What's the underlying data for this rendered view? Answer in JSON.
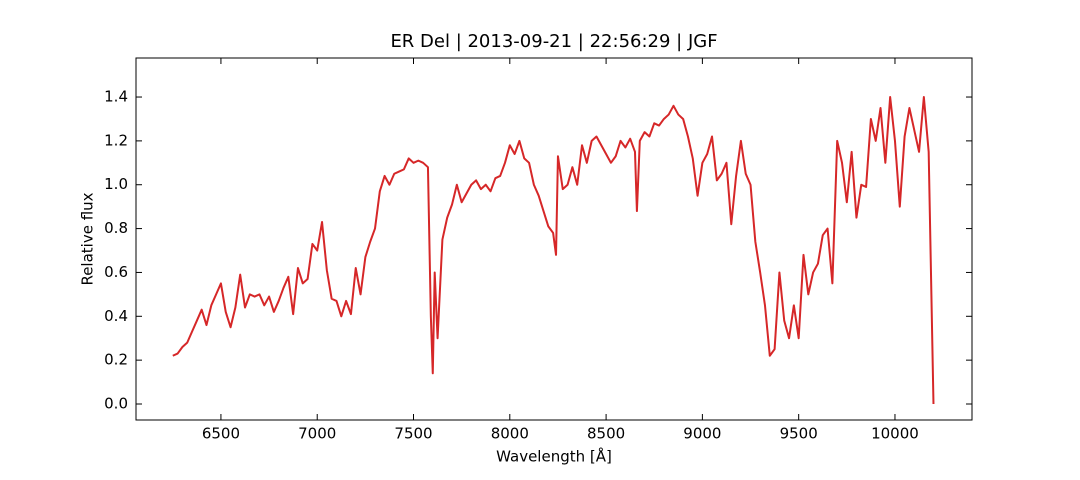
{
  "chart_data": {
    "type": "line",
    "title": "ER Del | 2013-09-21 | 22:56:29 | JGF",
    "xlabel": "Wavelength [Å]",
    "ylabel": "Relative flux",
    "color": "#d62728",
    "xlim": [
      6059,
      10400
    ],
    "ylim": [
      -0.073,
      1.578
    ],
    "xticks": [
      6500,
      7000,
      7500,
      8000,
      8500,
      9000,
      9500,
      10000
    ],
    "yticks": [
      {
        "value": 0,
        "label": "0.0"
      },
      0.2,
      0.4,
      0.6,
      0.8,
      {
        "value": 1,
        "label": "1.0"
      },
      1.2,
      1.4
    ],
    "x": [
      6250,
      6275,
      6300,
      6325,
      6350,
      6375,
      6400,
      6425,
      6450,
      6475,
      6500,
      6525,
      6550,
      6575,
      6600,
      6625,
      6650,
      6675,
      6700,
      6725,
      6750,
      6775,
      6800,
      6825,
      6850,
      6875,
      6900,
      6925,
      6950,
      6975,
      7000,
      7025,
      7050,
      7075,
      7100,
      7125,
      7150,
      7175,
      7200,
      7225,
      7250,
      7275,
      7300,
      7325,
      7350,
      7375,
      7400,
      7425,
      7450,
      7475,
      7500,
      7525,
      7550,
      7575,
      7590,
      7600,
      7610,
      7625,
      7650,
      7675,
      7700,
      7725,
      7750,
      7775,
      7800,
      7825,
      7850,
      7875,
      7900,
      7925,
      7950,
      7975,
      8000,
      8025,
      8050,
      8075,
      8100,
      8125,
      8150,
      8175,
      8200,
      8225,
      8240,
      8250,
      8275,
      8300,
      8325,
      8350,
      8375,
      8400,
      8425,
      8450,
      8475,
      8500,
      8525,
      8550,
      8575,
      8600,
      8625,
      8650,
      8660,
      8675,
      8700,
      8725,
      8750,
      8775,
      8800,
      8825,
      8850,
      8875,
      8900,
      8925,
      8950,
      8975,
      9000,
      9025,
      9050,
      9075,
      9100,
      9125,
      9150,
      9175,
      9200,
      9225,
      9250,
      9275,
      9300,
      9325,
      9350,
      9375,
      9400,
      9425,
      9450,
      9475,
      9500,
      9525,
      9550,
      9575,
      9600,
      9625,
      9650,
      9675,
      9700,
      9725,
      9750,
      9775,
      9800,
      9825,
      9850,
      9875,
      9900,
      9925,
      9950,
      9975,
      10000,
      10025,
      10050,
      10075,
      10100,
      10125,
      10150,
      10175,
      10200
    ],
    "values": [
      0.22,
      0.23,
      0.26,
      0.28,
      0.33,
      0.38,
      0.43,
      0.36,
      0.45,
      0.5,
      0.55,
      0.42,
      0.35,
      0.44,
      0.59,
      0.44,
      0.5,
      0.49,
      0.5,
      0.45,
      0.49,
      0.42,
      0.47,
      0.53,
      0.58,
      0.41,
      0.62,
      0.55,
      0.57,
      0.73,
      0.7,
      0.83,
      0.61,
      0.48,
      0.47,
      0.4,
      0.47,
      0.41,
      0.62,
      0.5,
      0.67,
      0.74,
      0.8,
      0.97,
      1.04,
      1.0,
      1.05,
      1.06,
      1.07,
      1.12,
      1.1,
      1.11,
      1.1,
      1.08,
      0.4,
      0.14,
      0.6,
      0.3,
      0.75,
      0.85,
      0.91,
      1.0,
      0.92,
      0.96,
      1.0,
      1.02,
      0.98,
      1.0,
      0.97,
      1.03,
      1.04,
      1.1,
      1.18,
      1.14,
      1.2,
      1.12,
      1.1,
      1.0,
      0.95,
      0.88,
      0.81,
      0.78,
      0.68,
      1.13,
      0.98,
      1.0,
      1.08,
      1.0,
      1.18,
      1.1,
      1.2,
      1.22,
      1.18,
      1.14,
      1.1,
      1.13,
      1.2,
      1.17,
      1.21,
      1.15,
      0.88,
      1.2,
      1.24,
      1.22,
      1.28,
      1.27,
      1.3,
      1.32,
      1.36,
      1.32,
      1.3,
      1.22,
      1.12,
      0.95,
      1.1,
      1.14,
      1.22,
      1.02,
      1.05,
      1.1,
      0.82,
      1.04,
      1.2,
      1.05,
      1.0,
      0.74,
      0.6,
      0.45,
      0.22,
      0.25,
      0.6,
      0.38,
      0.3,
      0.45,
      0.3,
      0.68,
      0.5,
      0.6,
      0.64,
      0.77,
      0.8,
      0.55,
      1.2,
      1.1,
      0.92,
      1.15,
      0.85,
      1.0,
      0.99,
      1.3,
      1.2,
      1.35,
      1.1,
      1.4,
      1.2,
      0.9,
      1.22,
      1.35,
      1.25,
      1.15,
      1.4,
      1.15,
      0.0
    ]
  }
}
